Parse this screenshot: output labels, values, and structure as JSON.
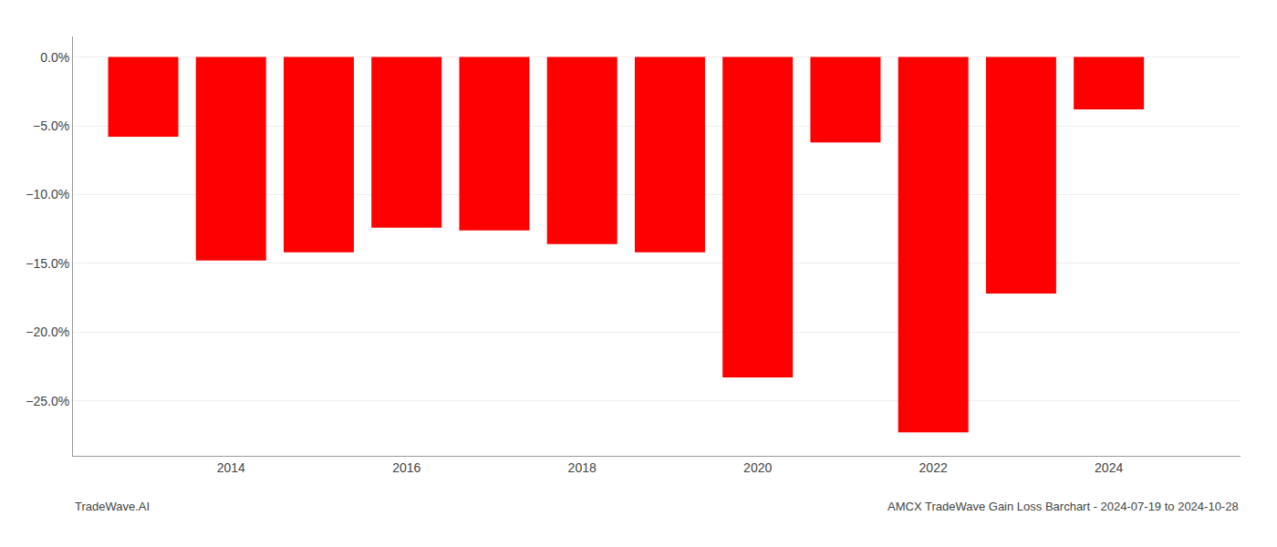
{
  "chart_data": {
    "type": "bar",
    "x": [
      2013,
      2014,
      2015,
      2016,
      2017,
      2018,
      2019,
      2020,
      2021,
      2022,
      2023,
      2024
    ],
    "values": [
      -5.8,
      -14.8,
      -14.2,
      -12.4,
      -12.6,
      -13.6,
      -14.2,
      -23.3,
      -6.2,
      -27.3,
      -17.2,
      -3.8
    ],
    "color": "#ff0000",
    "xlim": [
      2012.2,
      2025.5
    ],
    "xticks": [
      2014,
      2016,
      2018,
      2020,
      2022,
      2024
    ],
    "ylim": [
      -29,
      1.5
    ],
    "yticks": [
      {
        "value": 0.0,
        "label": "0.0%"
      },
      {
        "value": -5.0,
        "label": "−5.0%"
      },
      {
        "value": -10.0,
        "label": "−10.0%"
      },
      {
        "value": -15.0,
        "label": "−15.0%"
      },
      {
        "value": -20.0,
        "label": "−20.0%"
      },
      {
        "value": -25.0,
        "label": "−25.0%"
      }
    ],
    "grid": true,
    "annotations": [
      "TradeWave.AI",
      "AMCX TradeWave Gain Loss Barchart - 2024-07-19 to 2024-10-28"
    ]
  }
}
